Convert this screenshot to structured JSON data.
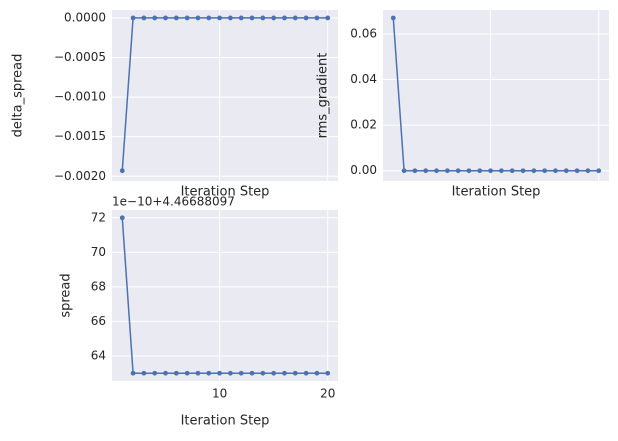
{
  "chart_data": [
    {
      "type": "line",
      "xlabel": "Iteration Step",
      "ylabel": "delta_spread",
      "x": [
        1,
        2,
        3,
        4,
        5,
        6,
        7,
        8,
        9,
        10,
        11,
        12,
        13,
        14,
        15,
        16,
        17,
        18,
        19,
        20
      ],
      "values": [
        -0.00193,
        0,
        0,
        0,
        0,
        0,
        0,
        0,
        0,
        0,
        0,
        0,
        0,
        0,
        0,
        0,
        0,
        0,
        0,
        0
      ],
      "color": "#4c72b0",
      "xlim": [
        0.05,
        20.95
      ],
      "ylim": [
        -0.00206,
        0.0001
      ],
      "xticks": [
        10,
        20
      ],
      "xtick_labels": false,
      "yticks": [
        {
          "value": 0,
          "label": "0.0000"
        },
        {
          "value": -0.0005,
          "label": "−0.0005"
        },
        {
          "value": -0.001,
          "label": "−0.0010"
        },
        {
          "value": -0.0015,
          "label": "−0.0015"
        },
        {
          "value": -0.002,
          "label": "−0.0020"
        }
      ],
      "grid": true
    },
    {
      "type": "line",
      "xlabel": "Iteration Step",
      "ylabel": "rms_gradient",
      "x": [
        1,
        2,
        3,
        4,
        5,
        6,
        7,
        8,
        9,
        10,
        11,
        12,
        13,
        14,
        15,
        16,
        17,
        18,
        19,
        20
      ],
      "values": [
        0.067,
        0,
        0,
        0,
        0,
        0,
        0,
        0,
        0,
        0,
        0,
        0,
        0,
        0,
        0,
        0,
        0,
        0,
        0,
        0
      ],
      "color": "#4c72b0",
      "xlim": [
        0.05,
        20.95
      ],
      "ylim": [
        -0.0045,
        0.0705
      ],
      "xticks": [
        10,
        20
      ],
      "xtick_labels": false,
      "yticks": [
        {
          "value": 0,
          "label": "0.00"
        },
        {
          "value": 0.02,
          "label": "0.02"
        },
        {
          "value": 0.04,
          "label": "0.04"
        },
        {
          "value": 0.06,
          "label": "0.06"
        }
      ],
      "grid": true
    },
    {
      "type": "line",
      "xlabel": "Iteration Step",
      "ylabel": "spread",
      "offset_text": "1e−10+4.46688097",
      "x": [
        1,
        2,
        3,
        4,
        5,
        6,
        7,
        8,
        9,
        10,
        11,
        12,
        13,
        14,
        15,
        16,
        17,
        18,
        19,
        20
      ],
      "values": [
        72,
        63,
        63,
        63,
        63,
        63,
        63,
        63,
        63,
        63,
        63,
        63,
        63,
        63,
        63,
        63,
        63,
        63,
        63,
        63
      ],
      "color": "#4c72b0",
      "xlim": [
        0.05,
        20.95
      ],
      "ylim": [
        62.55,
        72.45
      ],
      "xticks": [
        10,
        20
      ],
      "xtick_labels": true,
      "yticks": [
        64,
        66,
        68,
        70,
        72
      ],
      "grid": true
    }
  ]
}
